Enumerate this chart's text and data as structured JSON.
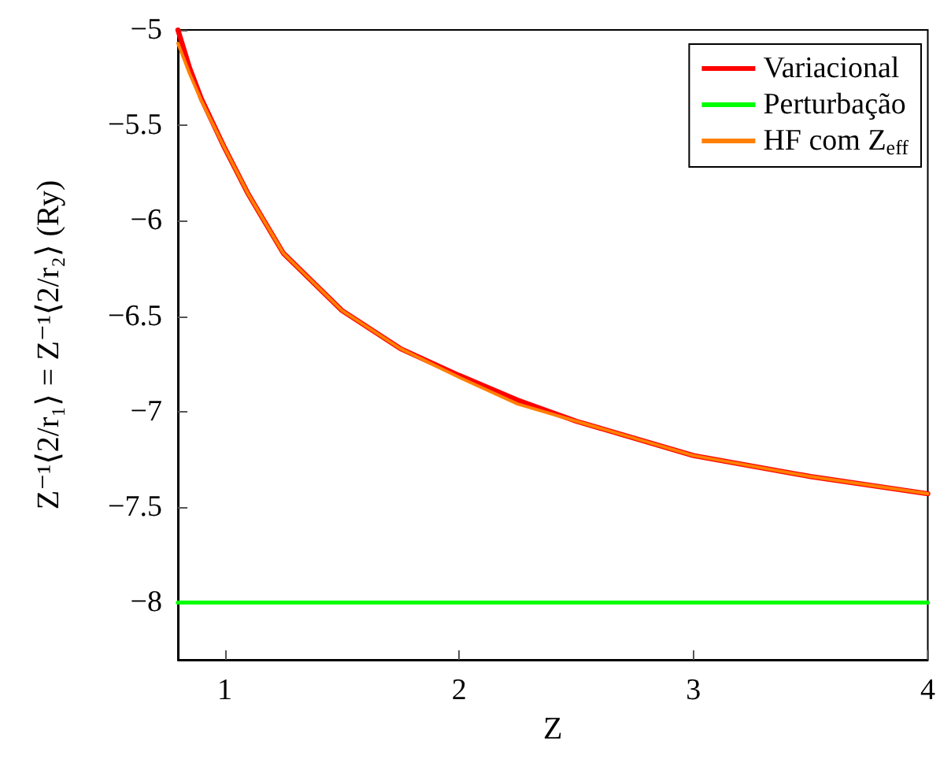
{
  "chart_data": {
    "type": "line",
    "xlabel": "Z",
    "ylabel": "Z⁻¹⟨2/r₁⟩ = Z⁻¹⟨2/r₂⟩ (Ry)",
    "xlim": [
      0.8,
      4
    ],
    "xticks": [
      1,
      2,
      3,
      4
    ],
    "ylim": [
      -8.3,
      -5
    ],
    "yticks": [
      -8,
      -7.5,
      -7,
      -6.5,
      -6,
      -5.5,
      -5
    ],
    "grid": false,
    "legend": "top right",
    "marker": "none",
    "line_style": "solid",
    "series": [
      {
        "name": "Variacional",
        "color": "#ff0000",
        "x": [
          0.8,
          0.85,
          0.9,
          1,
          1.1,
          1.25,
          1.5,
          1.75,
          2,
          2.25,
          2.5,
          3,
          3.5,
          4
        ],
        "values": [
          -5.0,
          -5.2,
          -5.36,
          -5.62,
          -5.86,
          -6.17,
          -6.47,
          -6.67,
          -6.81,
          -6.94,
          -7.05,
          -7.23,
          -7.34,
          -7.43
        ]
      },
      {
        "name": "Perturbação",
        "color": "#00ff00",
        "x": [
          0.8,
          4
        ],
        "values": [
          -8,
          -8
        ]
      },
      {
        "name": "HF com Z$_{eff}$",
        "color": "#ff8000",
        "x": [
          0.8,
          0.85,
          0.9,
          1,
          1.1,
          1.25,
          1.5,
          1.75,
          2,
          2.25,
          2.5,
          3,
          3.5,
          4
        ],
        "values": [
          -5.07,
          -5.23,
          -5.37,
          -5.62,
          -5.86,
          -6.17,
          -6.47,
          -6.67,
          -6.82,
          -6.96,
          -7.05,
          -7.23,
          -7.34,
          -7.43
        ]
      }
    ]
  }
}
